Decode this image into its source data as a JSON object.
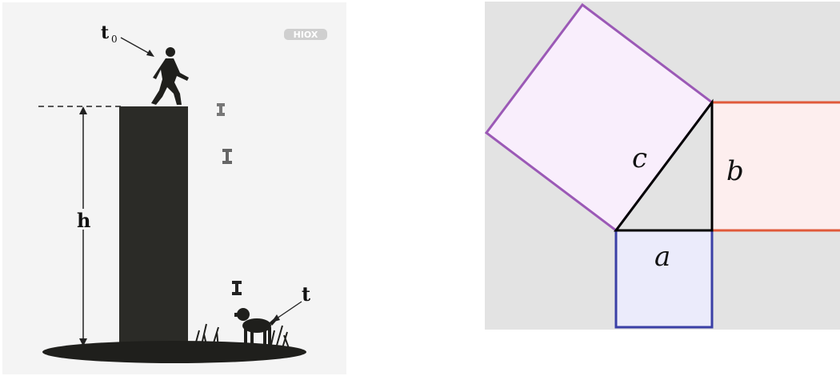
{
  "left_diagram": {
    "watermark": "HIOX",
    "label_t0_main": "t",
    "label_t0_sub": "0",
    "label_h": "h",
    "label_t": "t",
    "colors": {
      "tower": "#2b2b27",
      "ground": "#1f1f1c",
      "background": "#f4f4f4",
      "falling_object": "#555555"
    }
  },
  "right_diagram": {
    "label_a": "a",
    "label_b": "b",
    "label_c": "c",
    "colors": {
      "square_a_fill": "#ebebfb",
      "square_a_stroke": "#3a3fa6",
      "square_b_fill": "#fdeeee",
      "square_b_stroke": "#e05a3a",
      "square_c_fill": "#f9eefc",
      "square_c_stroke": "#9b59b6",
      "triangle_stroke": "#000000",
      "background": "#e3e3e3"
    }
  }
}
